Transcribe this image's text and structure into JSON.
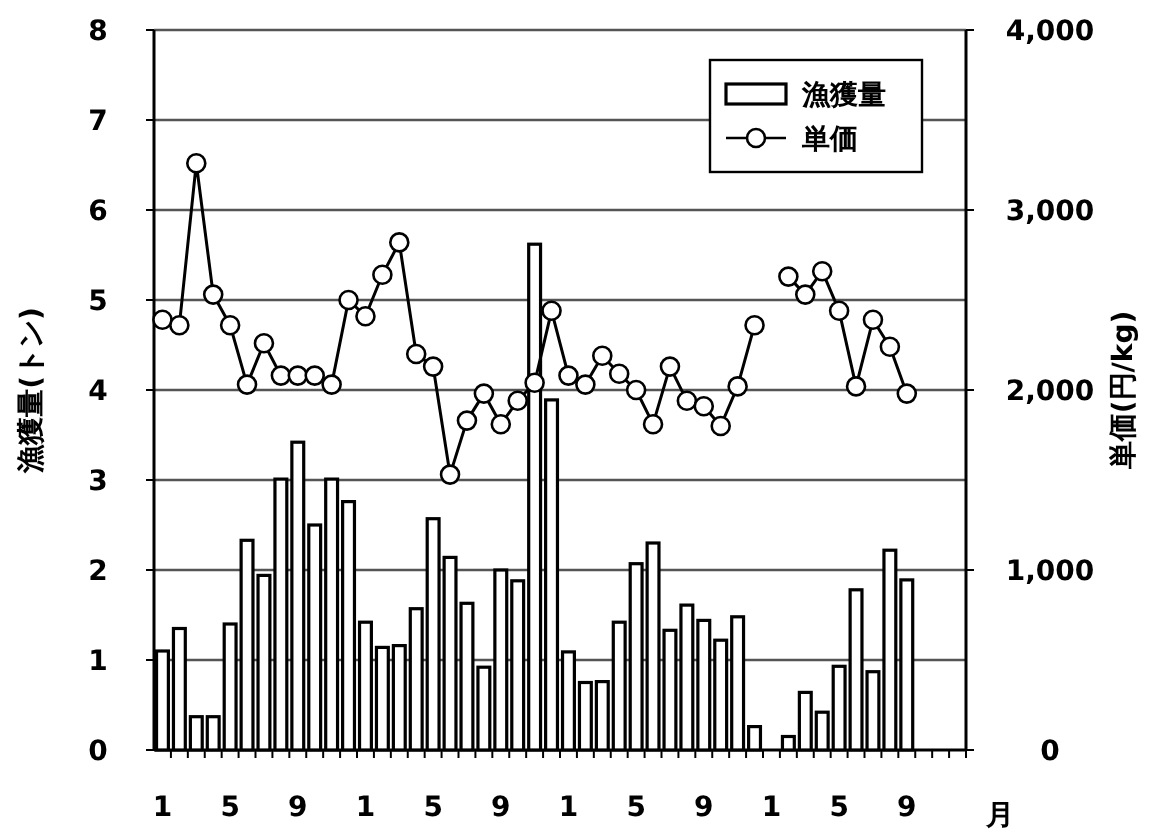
{
  "chart_data": {
    "type": "bar",
    "categories": [
      "1",
      null,
      null,
      null,
      "5",
      null,
      null,
      null,
      "9",
      null,
      null,
      null,
      "1",
      null,
      null,
      null,
      "5",
      null,
      null,
      null,
      "9",
      null,
      null,
      null,
      "1",
      null,
      null,
      null,
      "5",
      null,
      null,
      null,
      "9",
      null,
      null,
      null,
      "1",
      null,
      null,
      null,
      "5",
      null,
      null,
      null,
      "9",
      null,
      null,
      null
    ],
    "xlabel": "月",
    "ylabel": "漁獲量(トン)",
    "y2label": "単価(円/kg)",
    "ylim": [
      0,
      8
    ],
    "yticks": [
      0,
      1,
      2,
      3,
      4,
      5,
      6,
      7,
      8
    ],
    "y2lim": [
      0,
      4000
    ],
    "y2ticks": [
      0,
      {
        "value": 1000,
        "label": "1,000"
      },
      {
        "value": 2000,
        "label": "2,000"
      },
      {
        "value": 3000,
        "label": "3,000"
      },
      {
        "value": 4000,
        "label": "4,000"
      }
    ],
    "grid": "y",
    "legend": "top right",
    "marker": "circle",
    "series": [
      {
        "name": "漁獲量",
        "color": "#ffffff",
        "values": [
          1.1,
          1.35,
          0.37,
          0.37,
          1.4,
          2.33,
          1.94,
          3.01,
          3.42,
          2.5,
          3.01,
          2.76,
          1.42,
          1.14,
          1.16,
          1.57,
          2.57,
          2.14,
          1.63,
          0.92,
          2.0,
          1.88,
          5.62,
          3.89,
          1.09,
          0.75,
          0.76,
          1.42,
          2.07,
          2.3,
          1.33,
          1.61,
          1.44,
          1.22,
          1.48,
          0.26,
          null,
          0.15,
          0.64,
          0.42,
          0.93,
          1.78,
          0.87,
          2.22,
          1.89,
          null,
          null,
          null
        ]
      },
      {
        "name": "単価",
        "type": "line",
        "axis": "y2",
        "color": "#000000",
        "values": [
          2390,
          2360,
          3260,
          2530,
          2360,
          2030,
          2260,
          2080,
          2080,
          2080,
          2030,
          2500,
          2410,
          2640,
          2820,
          2200,
          2130,
          1530,
          1830,
          1980,
          1810,
          1940,
          2040,
          2440,
          2080,
          2030,
          2190,
          2090,
          2000,
          1810,
          2130,
          1940,
          1910,
          1800,
          2020,
          2360,
          null,
          2630,
          2530,
          2660,
          2440,
          2020,
          2390,
          2240,
          1980,
          null,
          null,
          null
        ]
      }
    ]
  }
}
